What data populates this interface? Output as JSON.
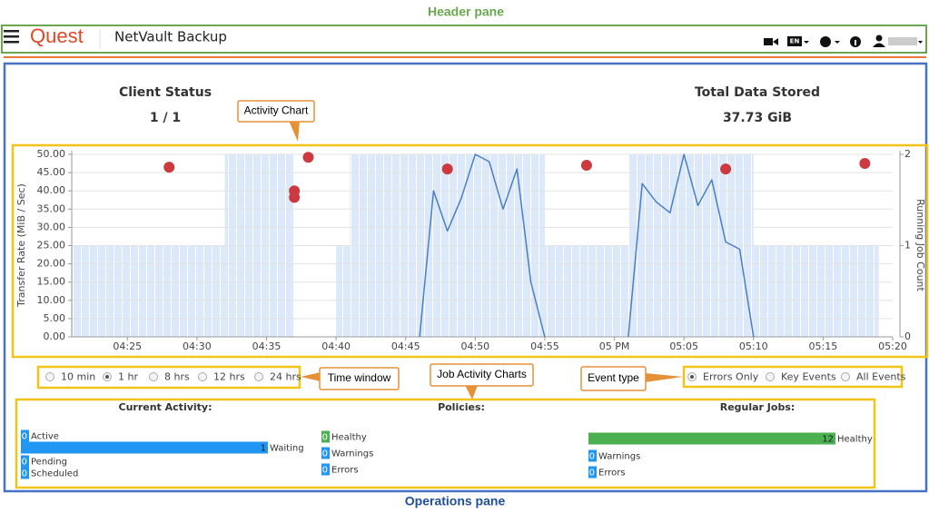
{
  "callouts": {
    "header": "Header pane",
    "operations": "Operations pane",
    "activity_chart": "Activity Chart",
    "time_window": "Time window",
    "job_activity": "Job Activity Charts",
    "event_type": "Event type"
  },
  "header": {
    "logo": "Quest",
    "product": "NetVault Backup",
    "language": "EN"
  },
  "summary": [
    {
      "title": "Client Status",
      "value": "1 / 1"
    },
    {
      "title": "Total Data Stored",
      "value": "37.73 GiB"
    }
  ],
  "chart_data": {
    "type": "line",
    "ylabel": "Transfer Rate (MiB / Sec)",
    "y2label": "Running Job Count",
    "grid": true,
    "xlim": [
      "04:21",
      "05:20"
    ],
    "xticks": [
      "04:25",
      "04:30",
      "04:35",
      "04:40",
      "04:45",
      "04:50",
      "04:55",
      {
        "value": "05:00",
        "label": "05 PM"
      },
      "05:05",
      "05:10",
      "05:15",
      "05:20"
    ],
    "ylim": [
      0,
      50
    ],
    "yticks": [
      {
        "value": 0,
        "label": "0.00"
      },
      {
        "value": 5,
        "label": "5.00"
      },
      {
        "value": 10,
        "label": "10.00"
      },
      {
        "value": 15,
        "label": "15.00"
      },
      {
        "value": 20,
        "label": "20.00"
      },
      {
        "value": 25,
        "label": "25.00"
      },
      {
        "value": 30,
        "label": "30.00"
      },
      {
        "value": 35,
        "label": "35.00"
      },
      {
        "value": 40,
        "label": "40.00"
      },
      {
        "value": 45,
        "label": "45.00"
      },
      {
        "value": 50,
        "label": "50.00"
      }
    ],
    "y2lim": [
      0,
      2
    ],
    "y2ticks": [
      0,
      1,
      2
    ],
    "series": [
      {
        "color": "#4a7fbf",
        "x": [
          "04:46",
          "04:47",
          "04:48",
          "04:49",
          "04:50",
          "04:51",
          "04:52",
          "04:53",
          "04:54",
          "04:55",
          "04:58",
          "05:01",
          "05:02",
          "05:03",
          "05:04",
          "05:05",
          "05:06",
          "05:07",
          "05:08",
          "05:09",
          "05:10"
        ],
        "values": [
          0,
          40,
          29,
          38,
          50,
          48,
          35,
          46,
          15,
          0,
          null,
          0,
          42,
          37,
          34,
          50,
          36,
          43,
          26,
          24,
          0
        ]
      }
    ],
    "job_count": {
      "axis": "y2",
      "color": "#dbe9fb",
      "bins": [
        "04:21",
        "04:32",
        "04:37",
        "04:40",
        "04:41",
        "04:55",
        "05:01",
        "05:10",
        "05:19"
      ],
      "values": [
        1,
        2,
        0,
        1,
        2,
        1,
        2,
        1
      ]
    },
    "events": {
      "type": "scatter",
      "color": "#cc3a3f",
      "x": [
        "04:28",
        "04:37",
        "04:37",
        "04:38",
        "04:48",
        "04:58",
        "05:08",
        "05:18"
      ],
      "values": [
        46.5,
        40,
        38.2,
        49.2,
        46,
        47,
        46,
        47.5
      ]
    }
  },
  "time_window": {
    "options": [
      "10 min",
      "1 hr",
      "8 hrs",
      "12 hrs",
      "24 hrs"
    ],
    "selected": 1
  },
  "event_type": {
    "options": [
      "Errors Only",
      "Key Events",
      "All Events"
    ],
    "selected": 0
  },
  "job_activity": [
    {
      "title": "Current Activity:",
      "items": [
        {
          "count": 0,
          "label": "Active",
          "color": "#2196f3"
        },
        {
          "count": 1,
          "label": "Waiting",
          "color": "#2196f3"
        },
        {
          "count": 0,
          "label": "Pending",
          "color": "#2196f3"
        },
        {
          "count": 0,
          "label": "Scheduled",
          "color": "#2196f3"
        }
      ]
    },
    {
      "title": "Policies:",
      "items": [
        {
          "count": 0,
          "label": "Healthy",
          "color": "#4caf50"
        },
        {
          "count": 0,
          "label": "Warnings",
          "color": "#2196f3"
        },
        {
          "count": 0,
          "label": "Errors",
          "color": "#2196f3"
        }
      ]
    },
    {
      "title": "Regular Jobs:",
      "items": [
        {
          "count": 12,
          "label": "Healthy",
          "color": "#4caf50"
        },
        {
          "count": 0,
          "label": "Warnings",
          "color": "#2196f3"
        },
        {
          "count": 0,
          "label": "Errors",
          "color": "#2196f3"
        }
      ]
    }
  ]
}
